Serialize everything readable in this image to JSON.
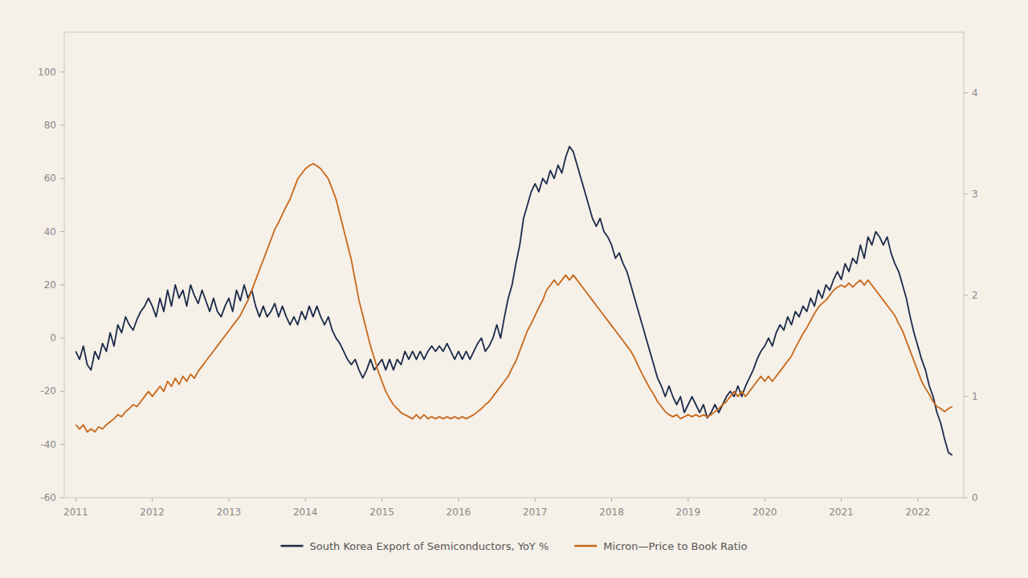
{
  "chart_data": {
    "type": "line",
    "x": [
      2011.0,
      2011.05,
      2011.1,
      2011.15,
      2011.2,
      2011.25,
      2011.3,
      2011.35,
      2011.4,
      2011.45,
      2011.5,
      2011.55,
      2011.6,
      2011.65,
      2011.7,
      2011.75,
      2011.8,
      2011.85,
      2011.9,
      2011.95,
      2012.0,
      2012.05,
      2012.1,
      2012.15,
      2012.2,
      2012.25,
      2012.3,
      2012.35,
      2012.4,
      2012.45,
      2012.5,
      2012.55,
      2012.6,
      2012.65,
      2012.7,
      2012.75,
      2012.8,
      2012.85,
      2012.9,
      2012.95,
      2013.0,
      2013.05,
      2013.1,
      2013.15,
      2013.2,
      2013.25,
      2013.3,
      2013.35,
      2013.4,
      2013.45,
      2013.5,
      2013.55,
      2013.6,
      2013.65,
      2013.7,
      2013.75,
      2013.8,
      2013.85,
      2013.9,
      2013.95,
      2014.0,
      2014.05,
      2014.1,
      2014.15,
      2014.2,
      2014.25,
      2014.3,
      2014.35,
      2014.4,
      2014.45,
      2014.5,
      2014.55,
      2014.6,
      2014.65,
      2014.7,
      2014.75,
      2014.8,
      2014.85,
      2014.9,
      2014.95,
      2015.0,
      2015.05,
      2015.1,
      2015.15,
      2015.2,
      2015.25,
      2015.3,
      2015.35,
      2015.4,
      2015.45,
      2015.5,
      2015.55,
      2015.6,
      2015.65,
      2015.7,
      2015.75,
      2015.8,
      2015.85,
      2015.9,
      2015.95,
      2016.0,
      2016.05,
      2016.1,
      2016.15,
      2016.2,
      2016.25,
      2016.3,
      2016.35,
      2016.4,
      2016.45,
      2016.5,
      2016.55,
      2016.6,
      2016.65,
      2016.7,
      2016.75,
      2016.8,
      2016.85,
      2016.9,
      2016.95,
      2017.0,
      2017.05,
      2017.1,
      2017.15,
      2017.2,
      2017.25,
      2017.3,
      2017.35,
      2017.4,
      2017.45,
      2017.5,
      2017.55,
      2017.6,
      2017.65,
      2017.7,
      2017.75,
      2017.8,
      2017.85,
      2017.9,
      2017.95,
      2018.0,
      2018.05,
      2018.1,
      2018.15,
      2018.2,
      2018.25,
      2018.3,
      2018.35,
      2018.4,
      2018.45,
      2018.5,
      2018.55,
      2018.6,
      2018.65,
      2018.7,
      2018.75,
      2018.8,
      2018.85,
      2018.9,
      2018.95,
      2019.0,
      2019.05,
      2019.1,
      2019.15,
      2019.2,
      2019.25,
      2019.3,
      2019.35,
      2019.4,
      2019.45,
      2019.5,
      2019.55,
      2019.6,
      2019.65,
      2019.7,
      2019.75,
      2019.8,
      2019.85,
      2019.9,
      2019.95,
      2020.0,
      2020.05,
      2020.1,
      2020.15,
      2020.2,
      2020.25,
      2020.3,
      2020.35,
      2020.4,
      2020.45,
      2020.5,
      2020.55,
      2020.6,
      2020.65,
      2020.7,
      2020.75,
      2020.8,
      2020.85,
      2020.9,
      2020.95,
      2021.0,
      2021.05,
      2021.1,
      2021.15,
      2021.2,
      2021.25,
      2021.3,
      2021.35,
      2021.4,
      2021.45,
      2021.5,
      2021.55,
      2021.6,
      2021.65,
      2021.7,
      2021.75,
      2021.8,
      2021.85,
      2021.9,
      2021.95,
      2022.0,
      2022.05,
      2022.1,
      2022.15,
      2022.2,
      2022.25,
      2022.3,
      2022.35,
      2022.4,
      2022.45
    ],
    "series": [
      {
        "name": "South Korea Export of Semiconductors, YoY %",
        "color": "#1b2a4a",
        "values": [
          -5,
          -8,
          -3,
          -10,
          -12,
          -5,
          -8,
          -2,
          -5,
          2,
          -3,
          5,
          2,
          8,
          5,
          3,
          7,
          10,
          12,
          15,
          12,
          8,
          15,
          10,
          18,
          12,
          20,
          15,
          18,
          12,
          20,
          16,
          13,
          18,
          14,
          10,
          15,
          10,
          8,
          12,
          15,
          10,
          18,
          14,
          20,
          15,
          18,
          12,
          8,
          12,
          8,
          10,
          13,
          8,
          12,
          8,
          5,
          8,
          5,
          10,
          7,
          12,
          8,
          12,
          8,
          5,
          8,
          3,
          0,
          -2,
          -5,
          -8,
          -10,
          -8,
          -12,
          -15,
          -12,
          -8,
          -12,
          -10,
          -8,
          -12,
          -8,
          -12,
          -8,
          -10,
          -5,
          -8,
          -5,
          -8,
          -5,
          -8,
          -5,
          -3,
          -5,
          -3,
          -5,
          -2,
          -5,
          -8,
          -5,
          -8,
          -5,
          -8,
          -5,
          -2,
          0,
          -5,
          -3,
          0,
          5,
          0,
          8,
          15,
          20,
          28,
          35,
          45,
          50,
          55,
          58,
          55,
          60,
          58,
          63,
          60,
          65,
          62,
          68,
          72,
          70,
          65,
          60,
          55,
          50,
          45,
          42,
          45,
          40,
          38,
          35,
          30,
          32,
          28,
          25,
          20,
          15,
          10,
          5,
          0,
          -5,
          -10,
          -15,
          -18,
          -22,
          -18,
          -22,
          -25,
          -22,
          -28,
          -25,
          -22,
          -25,
          -28,
          -25,
          -30,
          -28,
          -25,
          -28,
          -25,
          -22,
          -20,
          -22,
          -18,
          -22,
          -18,
          -15,
          -12,
          -8,
          -5,
          -3,
          0,
          -3,
          2,
          5,
          3,
          8,
          5,
          10,
          8,
          12,
          10,
          15,
          12,
          18,
          15,
          20,
          18,
          22,
          25,
          22,
          28,
          25,
          30,
          28,
          35,
          30,
          38,
          35,
          40,
          38,
          35,
          38,
          32,
          28,
          25,
          20,
          15,
          8,
          2,
          -3,
          -8,
          -12,
          -18,
          -22,
          -28,
          -32,
          -38,
          -43,
          -44
        ]
      },
      {
        "name": "Micron—Price to Book Ratio",
        "color": "#c8681a",
        "axis": "y2",
        "values": [
          0.72,
          0.68,
          0.72,
          0.65,
          0.68,
          0.65,
          0.7,
          0.68,
          0.72,
          0.75,
          0.78,
          0.82,
          0.8,
          0.85,
          0.88,
          0.92,
          0.9,
          0.95,
          1.0,
          1.05,
          1.0,
          1.05,
          1.1,
          1.05,
          1.15,
          1.1,
          1.18,
          1.12,
          1.2,
          1.15,
          1.22,
          1.18,
          1.25,
          1.3,
          1.35,
          1.4,
          1.45,
          1.5,
          1.55,
          1.6,
          1.65,
          1.7,
          1.75,
          1.8,
          1.88,
          1.95,
          2.05,
          2.15,
          2.25,
          2.35,
          2.45,
          2.55,
          2.65,
          2.72,
          2.8,
          2.88,
          2.95,
          3.05,
          3.15,
          3.2,
          3.25,
          3.28,
          3.3,
          3.28,
          3.25,
          3.2,
          3.15,
          3.05,
          2.95,
          2.8,
          2.65,
          2.5,
          2.35,
          2.15,
          1.95,
          1.8,
          1.65,
          1.5,
          1.38,
          1.25,
          1.15,
          1.05,
          0.98,
          0.92,
          0.88,
          0.84,
          0.82,
          0.8,
          0.78,
          0.82,
          0.78,
          0.82,
          0.78,
          0.8,
          0.78,
          0.8,
          0.78,
          0.8,
          0.78,
          0.8,
          0.78,
          0.8,
          0.78,
          0.8,
          0.82,
          0.85,
          0.88,
          0.92,
          0.95,
          1.0,
          1.05,
          1.1,
          1.15,
          1.2,
          1.28,
          1.35,
          1.45,
          1.55,
          1.65,
          1.72,
          1.8,
          1.88,
          1.95,
          2.05,
          2.1,
          2.15,
          2.1,
          2.15,
          2.2,
          2.15,
          2.2,
          2.15,
          2.1,
          2.05,
          2.0,
          1.95,
          1.9,
          1.85,
          1.8,
          1.75,
          1.7,
          1.65,
          1.6,
          1.55,
          1.5,
          1.45,
          1.38,
          1.3,
          1.22,
          1.15,
          1.08,
          1.02,
          0.95,
          0.9,
          0.85,
          0.82,
          0.8,
          0.82,
          0.78,
          0.8,
          0.82,
          0.8,
          0.82,
          0.8,
          0.82,
          0.8,
          0.82,
          0.85,
          0.88,
          0.92,
          0.95,
          1.0,
          1.05,
          1.0,
          1.05,
          1.0,
          1.05,
          1.1,
          1.15,
          1.2,
          1.15,
          1.2,
          1.15,
          1.2,
          1.25,
          1.3,
          1.35,
          1.4,
          1.48,
          1.55,
          1.62,
          1.68,
          1.75,
          1.82,
          1.88,
          1.92,
          1.95,
          2.0,
          2.05,
          2.08,
          2.1,
          2.08,
          2.12,
          2.08,
          2.12,
          2.15,
          2.1,
          2.15,
          2.1,
          2.05,
          2.0,
          1.95,
          1.9,
          1.85,
          1.8,
          1.72,
          1.65,
          1.55,
          1.45,
          1.35,
          1.25,
          1.15,
          1.08,
          1.02,
          0.95,
          0.9,
          0.88,
          0.85,
          0.88,
          0.9
        ]
      }
    ],
    "xlim": [
      2010.85,
      2022.6
    ],
    "xticks": [
      2011,
      2012,
      2013,
      2014,
      2015,
      2016,
      2017,
      2018,
      2019,
      2020,
      2021,
      2022
    ],
    "ylim": [
      -60,
      115
    ],
    "yticks": [
      -60,
      -40,
      -20,
      0,
      20,
      40,
      60,
      80,
      100
    ],
    "y2lim": [
      0,
      4.6
    ],
    "y2ticks": [
      0,
      1,
      2,
      3,
      4
    ],
    "grid": false,
    "legend": "bottom"
  }
}
